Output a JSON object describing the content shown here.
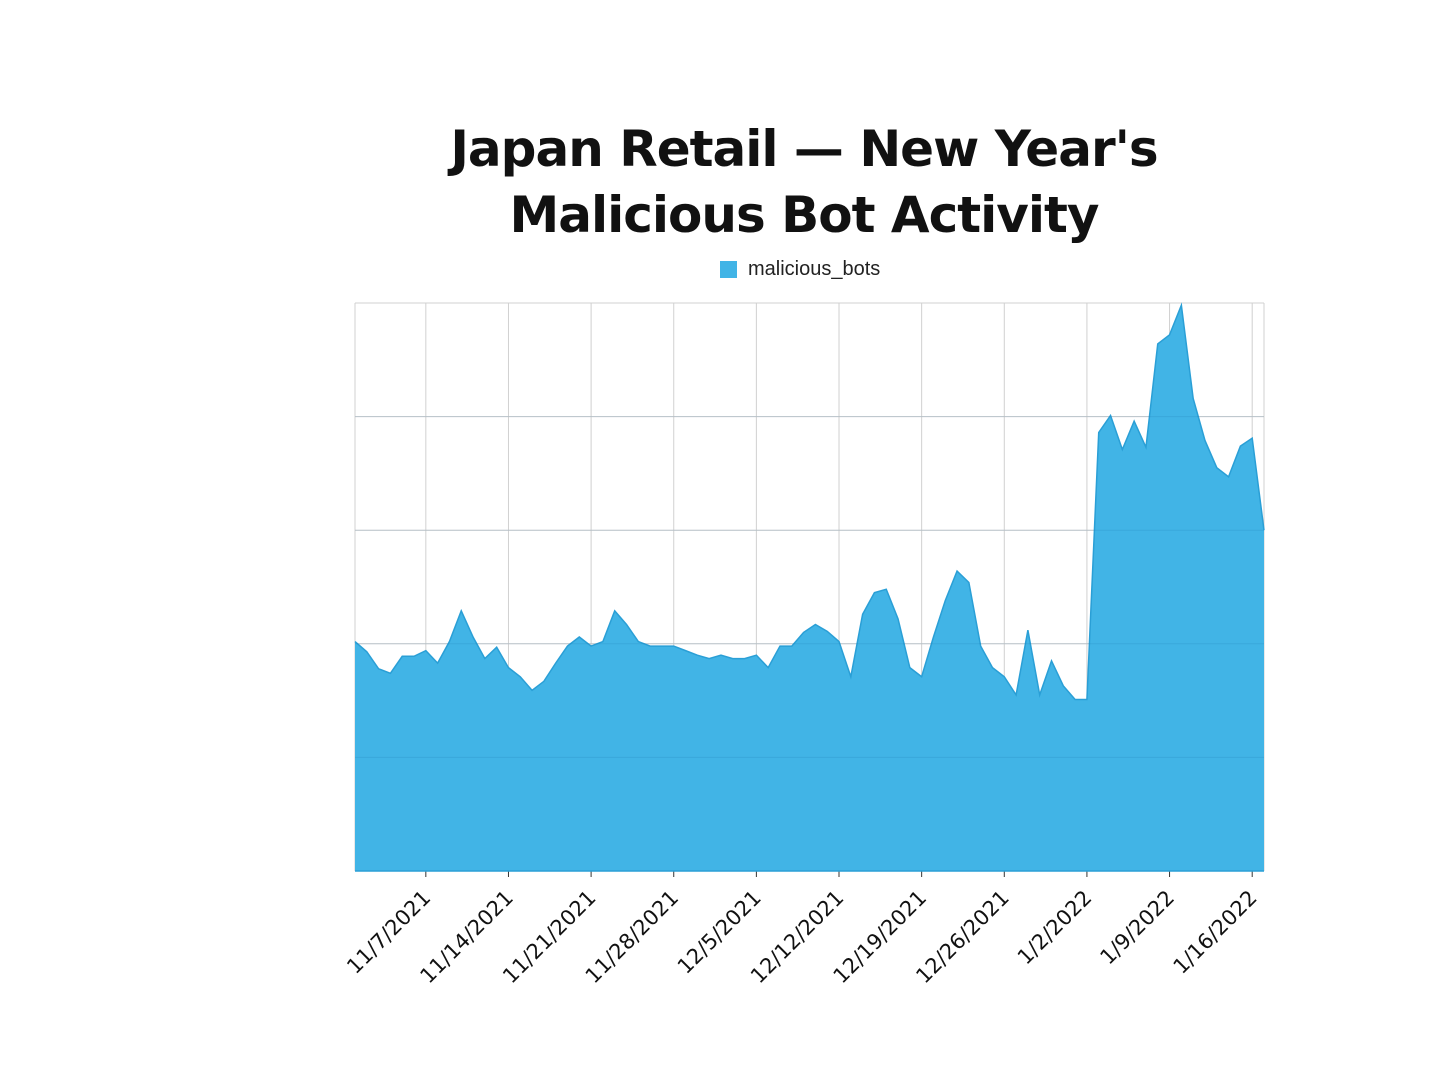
{
  "chart_data": {
    "type": "area",
    "title": "Japan Retail — New Year's Malicious Bot Activity",
    "title_lines": [
      "Japan Retail — New Year's",
      "Malicious Bot Activity"
    ],
    "xlabel": "",
    "ylabel": "",
    "y_tick_labels_shown": false,
    "ylim": [
      0,
      5
    ],
    "grid": true,
    "legend_position": "top-center",
    "x_tick_labels": [
      "11/7/2021",
      "11/14/2021",
      "11/21/2021",
      "11/28/2021",
      "12/5/2021",
      "12/12/2021",
      "12/19/2021",
      "12/26/2021",
      "1/2/2022",
      "1/9/2022",
      "1/16/2022"
    ],
    "x": [
      "11/1/2021",
      "11/2/2021",
      "11/3/2021",
      "11/4/2021",
      "11/5/2021",
      "11/6/2021",
      "11/7/2021",
      "11/8/2021",
      "11/9/2021",
      "11/10/2021",
      "11/11/2021",
      "11/12/2021",
      "11/13/2021",
      "11/14/2021",
      "11/15/2021",
      "11/16/2021",
      "11/17/2021",
      "11/18/2021",
      "11/19/2021",
      "11/20/2021",
      "11/21/2021",
      "11/22/2021",
      "11/23/2021",
      "11/24/2021",
      "11/25/2021",
      "11/26/2021",
      "11/27/2021",
      "11/28/2021",
      "11/29/2021",
      "11/30/2021",
      "12/1/2021",
      "12/2/2021",
      "12/3/2021",
      "12/4/2021",
      "12/5/2021",
      "12/6/2021",
      "12/7/2021",
      "12/8/2021",
      "12/9/2021",
      "12/10/2021",
      "12/11/2021",
      "12/12/2021",
      "12/13/2021",
      "12/14/2021",
      "12/15/2021",
      "12/16/2021",
      "12/17/2021",
      "12/18/2021",
      "12/19/2021",
      "12/20/2021",
      "12/21/2021",
      "12/22/2021",
      "12/23/2021",
      "12/24/2021",
      "12/25/2021",
      "12/26/2021",
      "12/27/2021",
      "12/28/2021",
      "12/29/2021",
      "12/30/2021",
      "12/31/2021",
      "1/1/2022",
      "1/2/2022",
      "1/3/2022",
      "1/4/2022",
      "1/5/2022",
      "1/6/2022",
      "1/7/2022",
      "1/8/2022",
      "1/9/2022",
      "1/10/2022",
      "1/11/2022",
      "1/12/2022",
      "1/13/2022",
      "1/14/2022",
      "1/15/2022",
      "1/16/2022",
      "1/17/2022"
    ],
    "series": [
      {
        "name": "malicious_bots",
        "color": "#41b4e6",
        "values": [
          2.02,
          1.93,
          1.78,
          1.74,
          1.89,
          1.89,
          1.94,
          1.83,
          2.02,
          2.29,
          2.06,
          1.87,
          1.97,
          1.79,
          1.71,
          1.59,
          1.67,
          1.83,
          1.98,
          2.06,
          1.98,
          2.02,
          2.29,
          2.17,
          2.02,
          1.98,
          1.98,
          1.98,
          1.94,
          1.9,
          1.87,
          1.9,
          1.87,
          1.87,
          1.9,
          1.79,
          1.98,
          1.98,
          2.1,
          2.17,
          2.11,
          2.02,
          1.71,
          2.26,
          2.45,
          2.48,
          2.22,
          1.79,
          1.71,
          2.06,
          2.38,
          2.64,
          2.54,
          1.98,
          1.79,
          1.71,
          1.55,
          2.12,
          1.55,
          1.85,
          1.63,
          1.51,
          1.51,
          3.86,
          4.01,
          3.71,
          3.96,
          3.73,
          4.64,
          4.72,
          4.98,
          4.16,
          3.79,
          3.55,
          3.47,
          3.74,
          3.81,
          3.0
        ]
      }
    ]
  }
}
